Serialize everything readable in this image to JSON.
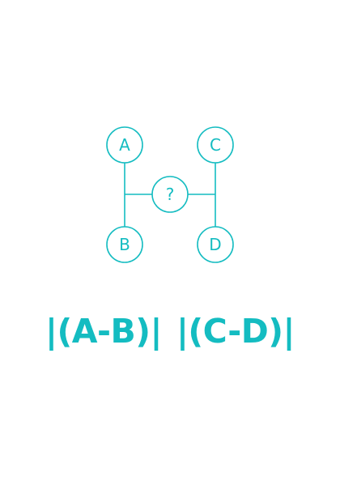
{
  "colors": {
    "accent": "#14bcc1",
    "background": "#ffffff"
  },
  "diagram": {
    "nodes": {
      "a": "A",
      "b": "B",
      "c": "C",
      "d": "D",
      "center": "?"
    }
  },
  "formula": {
    "left": "|(A-B)|",
    "right": "|(C-D)|"
  }
}
